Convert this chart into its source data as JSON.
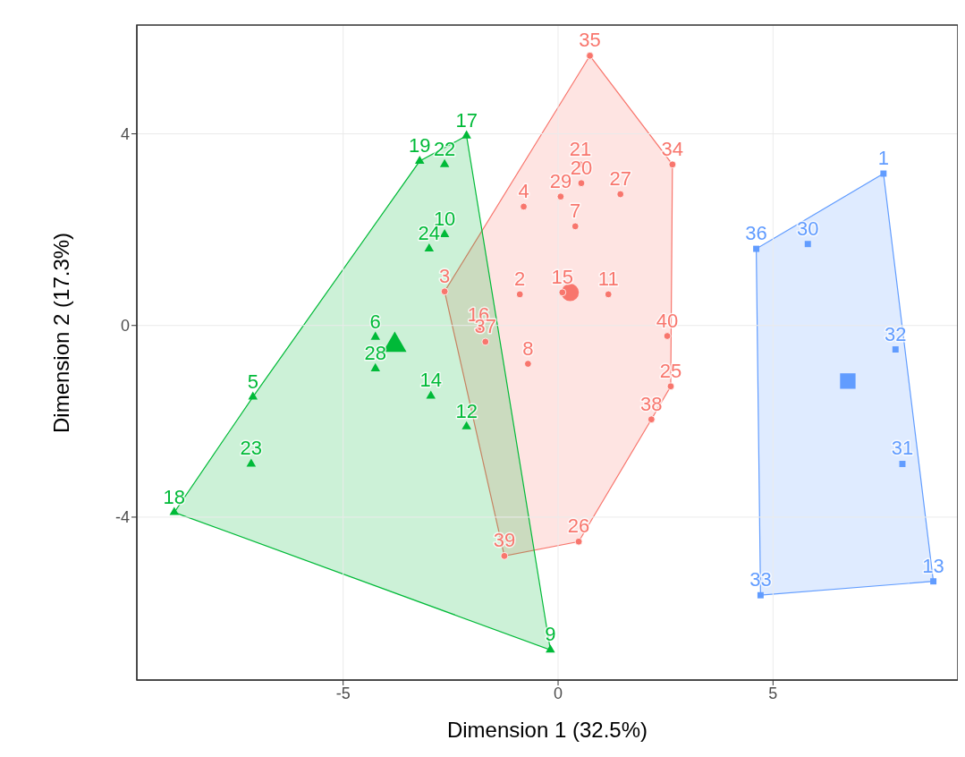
{
  "chart_data": {
    "type": "bubble",
    "xlabel": "Dimension 1 (32.5%)",
    "ylabel": "Dimension 2 (17.3%)",
    "xlim": [
      -9.8,
      9.3
    ],
    "ylim": [
      -7.4,
      6.27
    ],
    "xticks": [
      -5,
      0,
      5
    ],
    "yticks": [
      -4,
      0,
      4
    ],
    "grid": true,
    "series": [
      {
        "color": "#f8766d",
        "marker": "circle",
        "x": [
          0.28,
          0.74,
          2.66,
          0.52,
          0.54,
          0.06,
          1.45,
          -0.8,
          0.4,
          -0.89,
          0.1,
          1.17,
          -2.64,
          -1.85,
          -1.69,
          -0.7,
          2.54,
          2.62,
          2.17,
          0.48,
          -1.25
        ],
        "values": [
          0.69,
          5.63,
          3.36,
          3.36,
          2.97,
          2.69,
          2.74,
          2.48,
          2.07,
          0.65,
          0.69,
          0.65,
          0.71,
          -0.09,
          -0.34,
          -0.8,
          -0.22,
          -1.27,
          -1.96,
          -4.51,
          -4.81
        ],
        "sizes": [
          1,
          0.16,
          0.16,
          0.16,
          0.16,
          0.16,
          0.16,
          0.16,
          0.16,
          0.16,
          0.16,
          0.16,
          0.16,
          0.16,
          0.16,
          0.16,
          0.16,
          0.16,
          0.16,
          0.16,
          0.16
        ]
      },
      {
        "color": "#00ba38",
        "marker": "triangle",
        "x": [
          -3.8,
          -2.13,
          -3.22,
          -2.64,
          -2.64,
          -3.0,
          -4.25,
          -4.25,
          -2.96,
          -2.13,
          -7.1,
          -7.14,
          -8.93,
          -0.18
        ],
        "values": [
          -0.41,
          3.96,
          3.43,
          3.36,
          1.9,
          1.6,
          -0.24,
          -0.9,
          -1.47,
          -2.11,
          -1.49,
          -2.89,
          -3.9,
          -6.77
        ],
        "sizes": [
          1,
          0.16,
          0.16,
          0.16,
          0.16,
          0.16,
          0.16,
          0.16,
          0.16,
          0.16,
          0.16,
          0.16,
          0.16,
          0.16
        ]
      },
      {
        "color": "#619cff",
        "marker": "square",
        "x": [
          6.74,
          7.57,
          4.61,
          5.81,
          7.85,
          8.01,
          4.71,
          8.73
        ],
        "values": [
          -1.16,
          3.17,
          1.6,
          1.7,
          -0.5,
          -2.89,
          -5.63,
          -5.34
        ],
        "sizes": [
          1,
          0.16,
          0.16,
          0.16,
          0.16,
          0.16,
          0.16,
          0.16
        ]
      }
    ],
    "annotations": [
      {
        "text": "35",
        "x": 0.74,
        "y": 5.63
      },
      {
        "text": "34",
        "x": 2.66,
        "y": 3.36
      },
      {
        "text": "21",
        "x": 0.52,
        "y": 3.36
      },
      {
        "text": "20",
        "x": 0.54,
        "y": 2.97
      },
      {
        "text": "29",
        "x": 0.06,
        "y": 2.69
      },
      {
        "text": "27",
        "x": 1.45,
        "y": 2.74
      },
      {
        "text": "4",
        "x": -0.8,
        "y": 2.48
      },
      {
        "text": "7",
        "x": 0.4,
        "y": 2.07
      },
      {
        "text": "2",
        "x": -0.89,
        "y": 0.65
      },
      {
        "text": "15",
        "x": 0.1,
        "y": 0.69
      },
      {
        "text": "11",
        "x": 1.17,
        "y": 0.65
      },
      {
        "text": "3",
        "x": -2.64,
        "y": 0.71
      },
      {
        "text": "16",
        "x": -1.85,
        "y": -0.09
      },
      {
        "text": "37",
        "x": -1.69,
        "y": -0.34
      },
      {
        "text": "8",
        "x": -0.7,
        "y": -0.8
      },
      {
        "text": "40",
        "x": 2.54,
        "y": -0.22
      },
      {
        "text": "25",
        "x": 2.62,
        "y": -1.27
      },
      {
        "text": "38",
        "x": 2.17,
        "y": -1.96
      },
      {
        "text": "26",
        "x": 0.48,
        "y": -4.51
      },
      {
        "text": "39",
        "x": -1.25,
        "y": -4.81
      },
      {
        "text": "17",
        "x": -2.13,
        "y": 3.96
      },
      {
        "text": "19",
        "x": -3.22,
        "y": 3.43
      },
      {
        "text": "22",
        "x": -2.64,
        "y": 3.36
      },
      {
        "text": "10",
        "x": -2.64,
        "y": 1.9
      },
      {
        "text": "24",
        "x": -3.0,
        "y": 1.6
      },
      {
        "text": "6",
        "x": -4.25,
        "y": -0.24
      },
      {
        "text": "28",
        "x": -4.25,
        "y": -0.9
      },
      {
        "text": "14",
        "x": -2.96,
        "y": -1.47
      },
      {
        "text": "12",
        "x": -2.13,
        "y": -2.11
      },
      {
        "text": "5",
        "x": -7.1,
        "y": -1.49
      },
      {
        "text": "23",
        "x": -7.14,
        "y": -2.89
      },
      {
        "text": "18",
        "x": -8.93,
        "y": -3.9
      },
      {
        "text": "9",
        "x": -0.18,
        "y": -6.77
      },
      {
        "text": "1",
        "x": 7.57,
        "y": 3.17
      },
      {
        "text": "36",
        "x": 4.61,
        "y": 1.6
      },
      {
        "text": "30",
        "x": 5.81,
        "y": 1.7
      },
      {
        "text": "32",
        "x": 7.85,
        "y": -0.5
      },
      {
        "text": "31",
        "x": 8.01,
        "y": -2.89
      },
      {
        "text": "33",
        "x": 4.71,
        "y": -5.63
      },
      {
        "text": "13",
        "x": 8.73,
        "y": -5.34
      }
    ]
  }
}
